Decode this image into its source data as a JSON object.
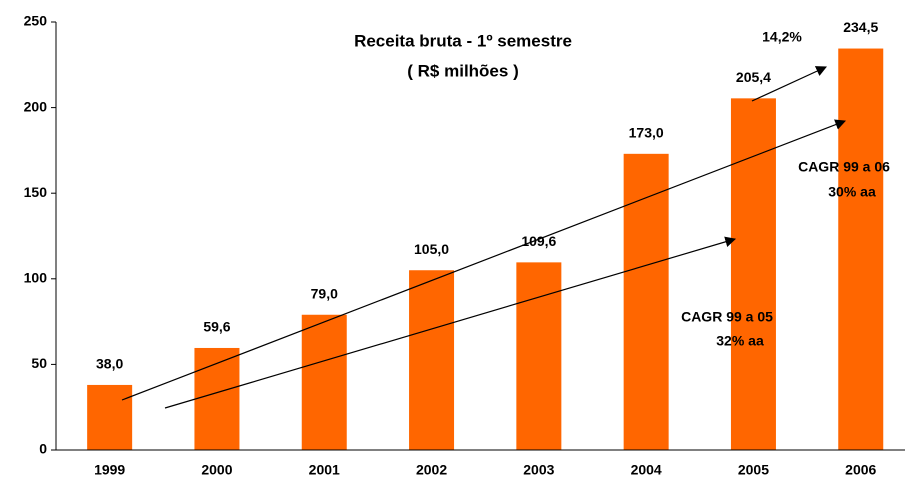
{
  "chart_data": {
    "type": "bar",
    "title": "Receita bruta - 1º semestre",
    "subtitle": "( R$ milhões )",
    "categories": [
      "1999",
      "2000",
      "2001",
      "2002",
      "2003",
      "2004",
      "2005",
      "2006"
    ],
    "values": [
      38.0,
      59.6,
      79.0,
      105.0,
      109.6,
      173.0,
      205.4,
      234.5
    ],
    "value_labels": [
      "38,0",
      "59,6",
      "79,0",
      "105,0",
      "109,6",
      "173,0",
      "205,4",
      "234,5"
    ],
    "color": "#ff6600",
    "ylim": [
      0,
      250
    ],
    "yticks": [
      0,
      50,
      100,
      150,
      200,
      250
    ],
    "annotations": [
      "14,2%",
      "CAGR 99 a 06",
      "30% aa",
      "CAGR 99 a 05",
      "32% aa"
    ]
  }
}
